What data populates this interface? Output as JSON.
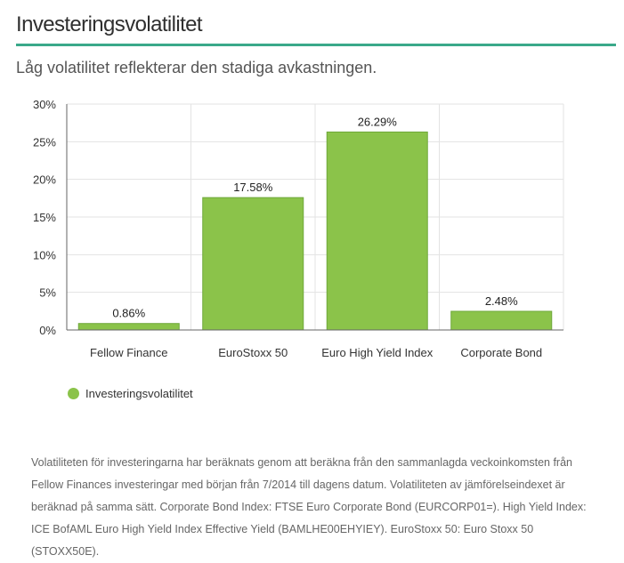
{
  "header": {
    "title": "Investeringsvolatilitet",
    "accent_color": "#3aa98a"
  },
  "subtitle": "Låg volatilitet reflekterar den stadiga avkastningen.",
  "chart_data": {
    "type": "bar",
    "categories": [
      "Fellow Finance",
      "EuroStoxx 50",
      "Euro High Yield Index",
      "Corporate Bond"
    ],
    "series": [
      {
        "name": "Investeringsvolatilitet",
        "values": [
          0.86,
          17.58,
          26.29,
          2.48
        ],
        "labels": [
          "0.86%",
          "17.58%",
          "26.29%",
          "2.48%"
        ],
        "color": "#8bc34a"
      }
    ],
    "ylim": [
      0,
      30
    ],
    "yticks": [
      0,
      5,
      10,
      15,
      20,
      25,
      30
    ],
    "ytick_labels": [
      "0%",
      "5%",
      "10%",
      "15%",
      "20%",
      "25%",
      "30%"
    ],
    "xlabel": "",
    "ylabel": "",
    "grid": true,
    "legend": "bottom-left"
  },
  "legend": {
    "label": "Investeringsvolatilitet",
    "color": "#8bc34a"
  },
  "footnote": "Volatiliteten för investeringarna har beräknats genom att beräkna från den sammanlagda veckoinkomsten från Fellow Finances investeringar med början från 7/2014 till dagens datum. Volatiliteten av jämförelseindexet är beräknad på samma sätt. Corporate Bond Index: FTSE Euro Corporate Bond (EURCORP01=). High Yield Index: ICE BofAML Euro High Yield Index Effective Yield (BAMLHE00EHYIEY). EuroStoxx 50: Euro Stoxx 50 (STOXX50E)."
}
